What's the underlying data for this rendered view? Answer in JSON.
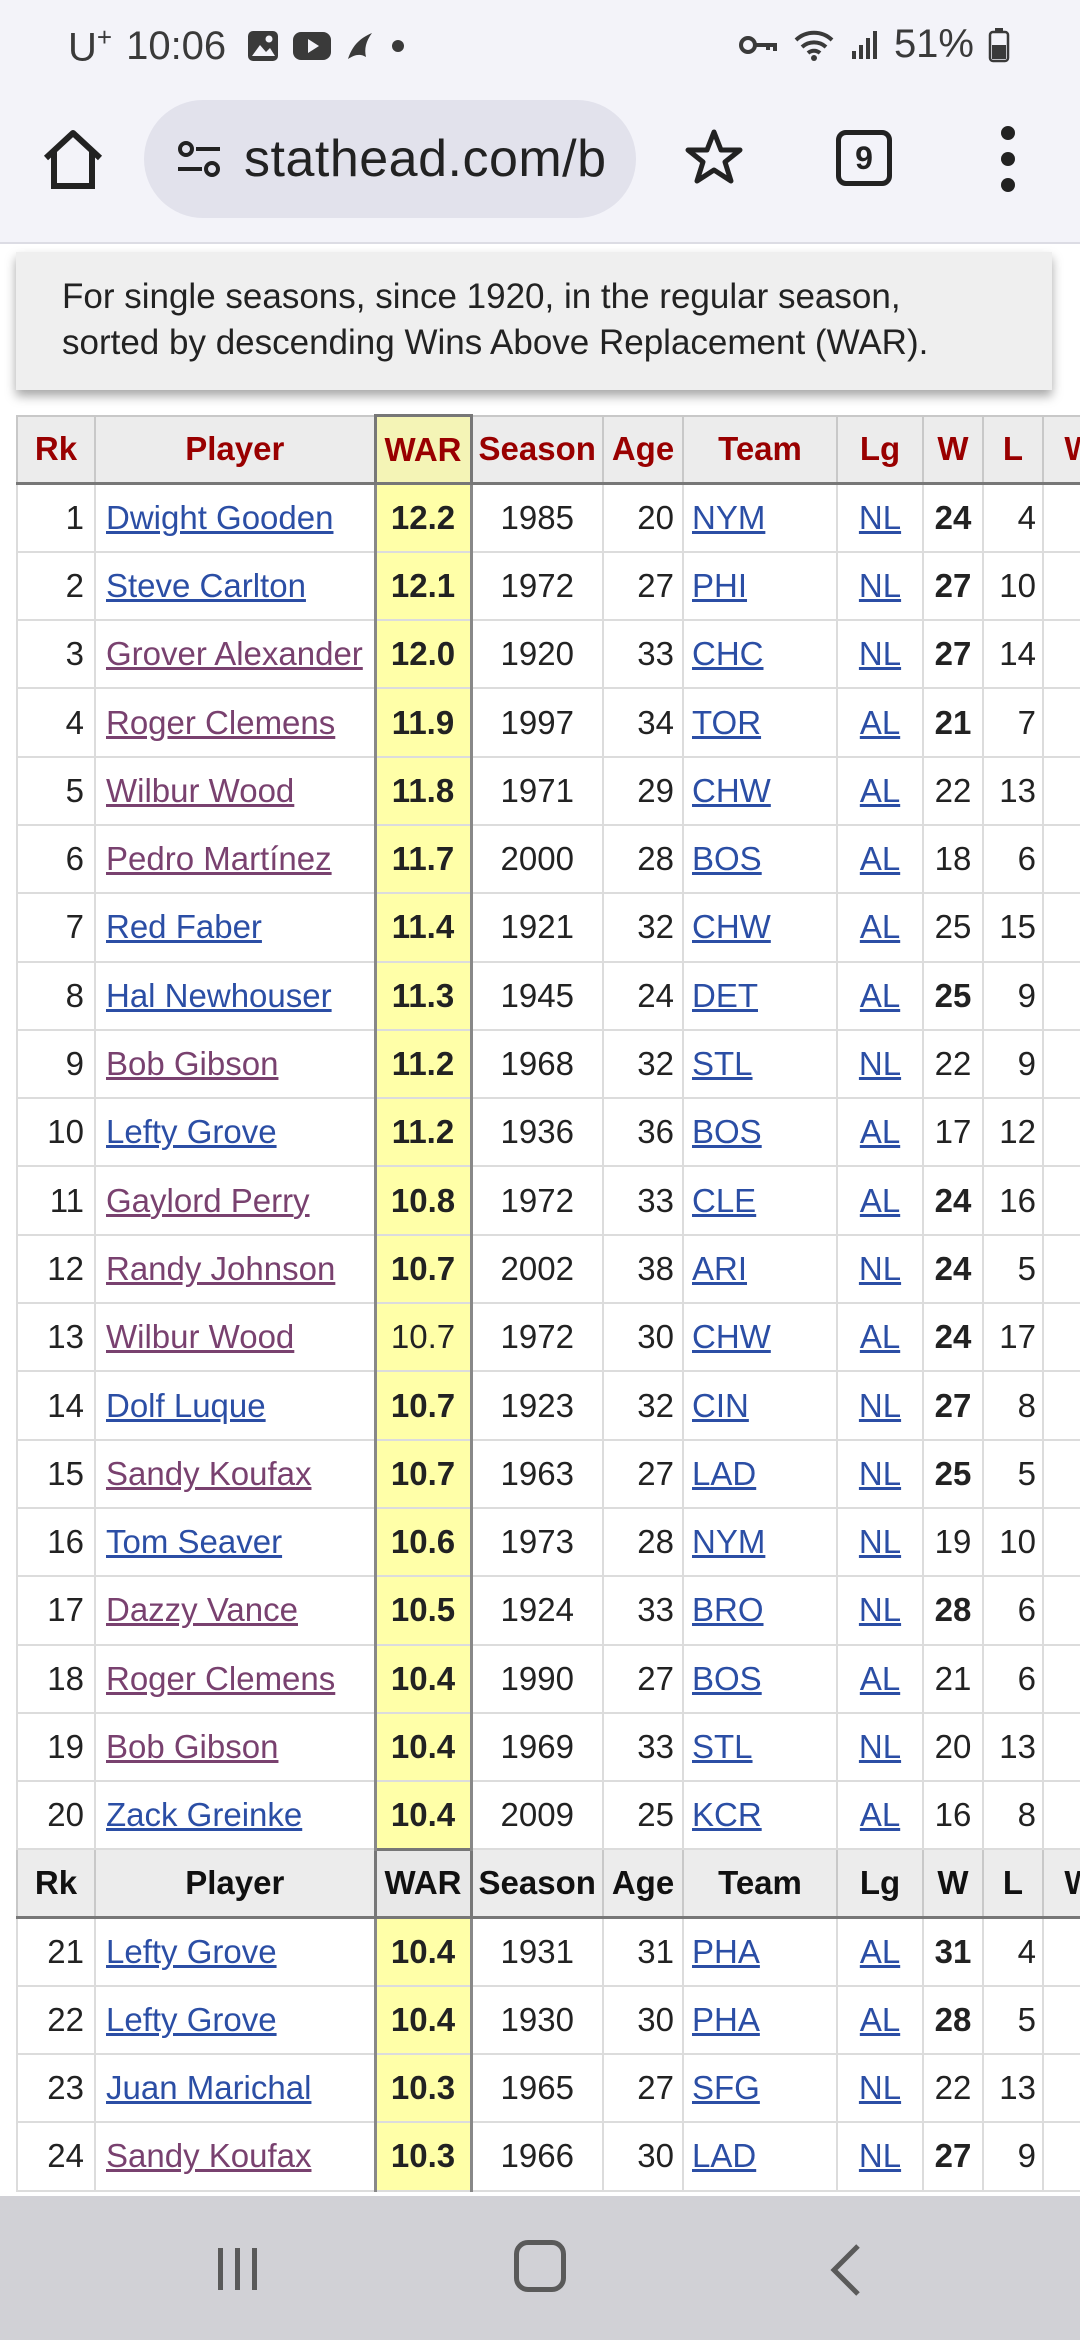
{
  "status": {
    "carrier": "U",
    "carrier_sup": "+",
    "time": "10:06",
    "battery": "51%"
  },
  "browser": {
    "url": "stathead.com/b",
    "tab_count": "9"
  },
  "description": "For single seasons, since 1920, in the regular season, sorted by descending Wins Above Replacement (WAR).",
  "table": {
    "headers": [
      "Rk",
      "Player",
      "WAR",
      "Season",
      "Age",
      "Team",
      "Lg",
      "W",
      "L",
      "W"
    ],
    "rows_top": [
      {
        "rk": "1",
        "player": "Dwight Gooden",
        "visited": false,
        "war": "12.2",
        "war_bold": true,
        "season": "1985",
        "age": "20",
        "team": "NYM",
        "lg": "NL",
        "w": "24",
        "w_bold": true,
        "l": "4"
      },
      {
        "rk": "2",
        "player": "Steve Carlton",
        "visited": false,
        "war": "12.1",
        "war_bold": true,
        "season": "1972",
        "age": "27",
        "team": "PHI",
        "lg": "NL",
        "w": "27",
        "w_bold": true,
        "l": "10"
      },
      {
        "rk": "3",
        "player": "Grover Alexander",
        "visited": true,
        "war": "12.0",
        "war_bold": true,
        "season": "1920",
        "age": "33",
        "team": "CHC",
        "lg": "NL",
        "w": "27",
        "w_bold": true,
        "l": "14"
      },
      {
        "rk": "4",
        "player": "Roger Clemens",
        "visited": true,
        "war": "11.9",
        "war_bold": true,
        "season": "1997",
        "age": "34",
        "team": "TOR",
        "lg": "AL",
        "w": "21",
        "w_bold": true,
        "l": "7"
      },
      {
        "rk": "5",
        "player": "Wilbur Wood",
        "visited": true,
        "war": "11.8",
        "war_bold": true,
        "season": "1971",
        "age": "29",
        "team": "CHW",
        "lg": "AL",
        "w": "22",
        "w_bold": false,
        "l": "13"
      },
      {
        "rk": "6",
        "player": "Pedro Martínez",
        "visited": true,
        "war": "11.7",
        "war_bold": true,
        "season": "2000",
        "age": "28",
        "team": "BOS",
        "lg": "AL",
        "w": "18",
        "w_bold": false,
        "l": "6"
      },
      {
        "rk": "7",
        "player": "Red Faber",
        "visited": false,
        "war": "11.4",
        "war_bold": true,
        "season": "1921",
        "age": "32",
        "team": "CHW",
        "lg": "AL",
        "w": "25",
        "w_bold": false,
        "l": "15"
      },
      {
        "rk": "8",
        "player": "Hal Newhouser",
        "visited": false,
        "war": "11.3",
        "war_bold": true,
        "season": "1945",
        "age": "24",
        "team": "DET",
        "lg": "AL",
        "w": "25",
        "w_bold": true,
        "l": "9"
      },
      {
        "rk": "9",
        "player": "Bob Gibson",
        "visited": true,
        "war": "11.2",
        "war_bold": true,
        "season": "1968",
        "age": "32",
        "team": "STL",
        "lg": "NL",
        "w": "22",
        "w_bold": false,
        "l": "9"
      },
      {
        "rk": "10",
        "player": "Lefty Grove",
        "visited": false,
        "war": "11.2",
        "war_bold": true,
        "season": "1936",
        "age": "36",
        "team": "BOS",
        "lg": "AL",
        "w": "17",
        "w_bold": false,
        "l": "12"
      },
      {
        "rk": "11",
        "player": "Gaylord Perry",
        "visited": true,
        "war": "10.8",
        "war_bold": true,
        "season": "1972",
        "age": "33",
        "team": "CLE",
        "lg": "AL",
        "w": "24",
        "w_bold": true,
        "l": "16"
      },
      {
        "rk": "12",
        "player": "Randy Johnson",
        "visited": true,
        "war": "10.7",
        "war_bold": true,
        "season": "2002",
        "age": "38",
        "team": "ARI",
        "lg": "NL",
        "w": "24",
        "w_bold": true,
        "l": "5"
      },
      {
        "rk": "13",
        "player": "Wilbur Wood",
        "visited": true,
        "war": "10.7",
        "war_bold": false,
        "season": "1972",
        "age": "30",
        "team": "CHW",
        "lg": "AL",
        "w": "24",
        "w_bold": true,
        "l": "17"
      },
      {
        "rk": "14",
        "player": "Dolf Luque",
        "visited": false,
        "war": "10.7",
        "war_bold": true,
        "season": "1923",
        "age": "32",
        "team": "CIN",
        "lg": "NL",
        "w": "27",
        "w_bold": true,
        "l": "8"
      },
      {
        "rk": "15",
        "player": "Sandy Koufax",
        "visited": true,
        "war": "10.7",
        "war_bold": true,
        "season": "1963",
        "age": "27",
        "team": "LAD",
        "lg": "NL",
        "w": "25",
        "w_bold": true,
        "l": "5"
      },
      {
        "rk": "16",
        "player": "Tom Seaver",
        "visited": false,
        "war": "10.6",
        "war_bold": true,
        "season": "1973",
        "age": "28",
        "team": "NYM",
        "lg": "NL",
        "w": "19",
        "w_bold": false,
        "l": "10"
      },
      {
        "rk": "17",
        "player": "Dazzy Vance",
        "visited": true,
        "war": "10.5",
        "war_bold": true,
        "season": "1924",
        "age": "33",
        "team": "BRO",
        "lg": "NL",
        "w": "28",
        "w_bold": true,
        "l": "6"
      },
      {
        "rk": "18",
        "player": "Roger Clemens",
        "visited": true,
        "war": "10.4",
        "war_bold": true,
        "season": "1990",
        "age": "27",
        "team": "BOS",
        "lg": "AL",
        "w": "21",
        "w_bold": false,
        "l": "6"
      },
      {
        "rk": "19",
        "player": "Bob Gibson",
        "visited": true,
        "war": "10.4",
        "war_bold": true,
        "season": "1969",
        "age": "33",
        "team": "STL",
        "lg": "NL",
        "w": "20",
        "w_bold": false,
        "l": "13"
      },
      {
        "rk": "20",
        "player": "Zack Greinke",
        "visited": false,
        "war": "10.4",
        "war_bold": true,
        "season": "2009",
        "age": "25",
        "team": "KCR",
        "lg": "AL",
        "w": "16",
        "w_bold": false,
        "l": "8"
      }
    ],
    "rows_bottom": [
      {
        "rk": "21",
        "player": "Lefty Grove",
        "visited": false,
        "war": "10.4",
        "war_bold": true,
        "season": "1931",
        "age": "31",
        "team": "PHA",
        "lg": "AL",
        "w": "31",
        "w_bold": true,
        "l": "4"
      },
      {
        "rk": "22",
        "player": "Lefty Grove",
        "visited": false,
        "war": "10.4",
        "war_bold": true,
        "season": "1930",
        "age": "30",
        "team": "PHA",
        "lg": "AL",
        "w": "28",
        "w_bold": true,
        "l": "5"
      },
      {
        "rk": "23",
        "player": "Juan Marichal",
        "visited": false,
        "war": "10.3",
        "war_bold": true,
        "season": "1965",
        "age": "27",
        "team": "SFG",
        "lg": "NL",
        "w": "22",
        "w_bold": false,
        "l": "13"
      },
      {
        "rk": "24",
        "player": "Sandy Koufax",
        "visited": true,
        "war": "10.3",
        "war_bold": true,
        "season": "1966",
        "age": "30",
        "team": "LAD",
        "lg": "NL",
        "w": "27",
        "w_bold": true,
        "l": "9"
      }
    ]
  }
}
